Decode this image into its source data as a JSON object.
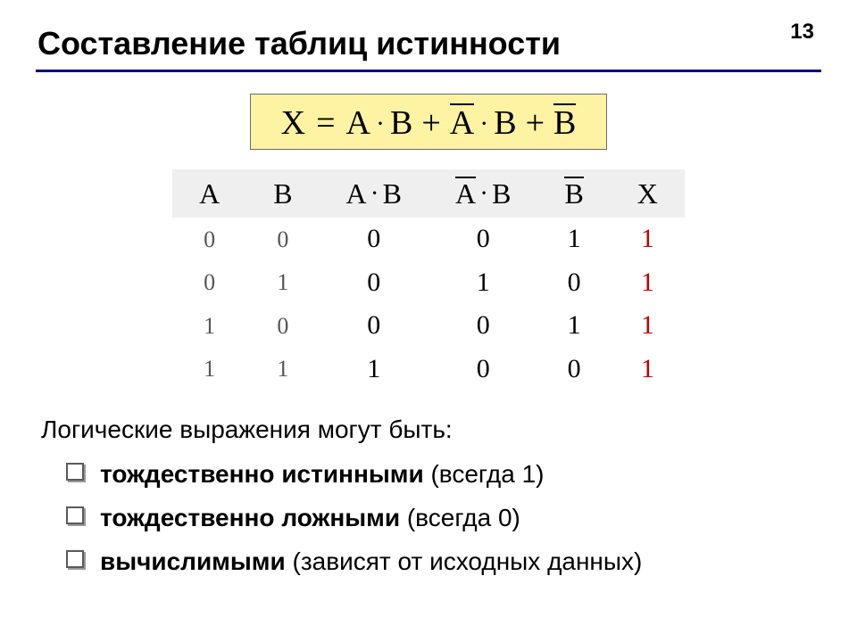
{
  "page_number": "13",
  "title": "Составление таблиц истинности",
  "accent_rule_color": "#000080",
  "formula": {
    "bg_color": "#fdf3a3",
    "border_color": "#6b6b6b",
    "font_family": "Times New Roman",
    "font_size_pt": 28,
    "lhs": "X",
    "eq": "=",
    "t1_a": "A",
    "t1_dot": "·",
    "t1_b": "B",
    "plus1": "+",
    "t2_a": "A",
    "t2_dot": "·",
    "t2_b": "B",
    "plus2": "+",
    "t3_b": "B"
  },
  "table": {
    "header_bg": "#efefef",
    "input_text_color": "#555555",
    "output_text_color": "#c00000",
    "font_family": "Times New Roman",
    "header_fontsize_pt": 24,
    "cell_fontsize_pt": 22,
    "columns": [
      {
        "key": "A",
        "label_plain": "A",
        "overline": false,
        "composite": false
      },
      {
        "key": "B",
        "label_plain": "B",
        "overline": false,
        "composite": false
      },
      {
        "key": "AB",
        "label_a": "A",
        "label_dot": "·",
        "label_b": "B",
        "overline_a": false,
        "overline_b": false,
        "composite": true
      },
      {
        "key": "nAB",
        "label_a": "A",
        "label_dot": "·",
        "label_b": "B",
        "overline_a": true,
        "overline_b": false,
        "composite": true
      },
      {
        "key": "nB",
        "label_plain": "B",
        "overline": true,
        "composite": false
      },
      {
        "key": "X",
        "label_plain": "X",
        "overline": false,
        "composite": false
      }
    ],
    "rows": [
      {
        "A": "0",
        "B": "0",
        "AB": "0",
        "nAB": "0",
        "nB": "1",
        "X": "1"
      },
      {
        "A": "0",
        "B": "1",
        "AB": "0",
        "nAB": "1",
        "nB": "0",
        "X": "1"
      },
      {
        "A": "1",
        "B": "0",
        "AB": "0",
        "nAB": "0",
        "nB": "1",
        "X": "1"
      },
      {
        "A": "1",
        "B": "1",
        "AB": "1",
        "nAB": "0",
        "nB": "0",
        "X": "1"
      }
    ]
  },
  "body": {
    "lead": "Логические выражения могут быть:",
    "bullets": [
      {
        "bold": "тождественно истинными",
        "rest": " (всегда 1)"
      },
      {
        "bold": "тождественно ложными",
        "rest": " (всегда 0)"
      },
      {
        "bold": "вычислимыми",
        "rest": " (зависят от исходных данных)"
      }
    ],
    "font_size_pt": 21
  }
}
